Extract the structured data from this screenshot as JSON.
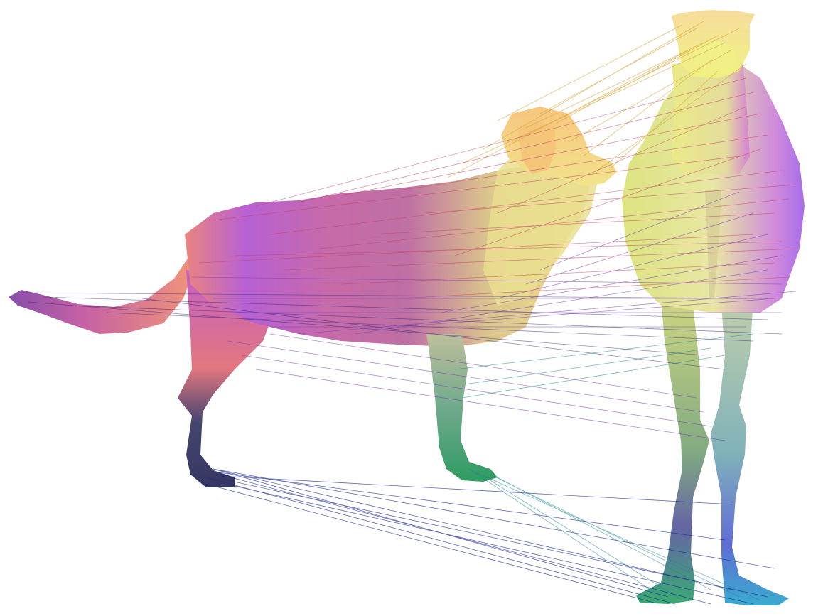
{
  "figure": {
    "description_free": true,
    "subjects": [
      "dog-mesh",
      "camel-mesh"
    ],
    "colors": {
      "background": "#ffffff",
      "magenta": "#c050d0",
      "purple": "#8a4ee0",
      "salmon": "#e8786a",
      "yellow": "#f2e27a",
      "orange": "#f6c070",
      "green": "#2fa060",
      "teal": "#30a8a8",
      "navy": "#2a2a6a",
      "blue": "#3050d0"
    }
  }
}
